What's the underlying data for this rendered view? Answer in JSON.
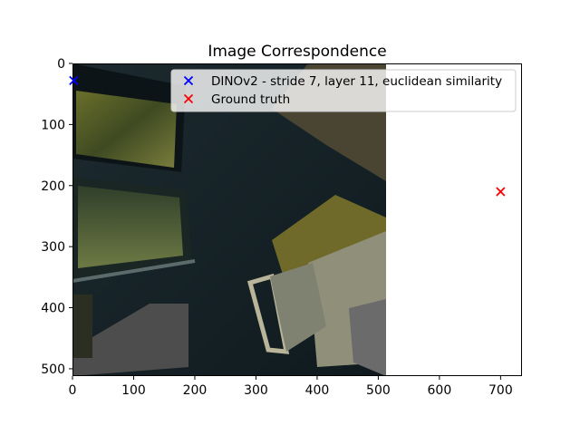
{
  "chart_data": {
    "type": "scatter",
    "title": "Image Correspondence",
    "xlabel": "",
    "ylabel": "",
    "xlim": [
      0,
      735
    ],
    "ylim": [
      512,
      0
    ],
    "y_inverted": true,
    "image_extent": {
      "x": [
        0,
        512
      ],
      "y": [
        0,
        512
      ]
    },
    "xticks": [
      0,
      100,
      200,
      300,
      400,
      500,
      600,
      700
    ],
    "yticks": [
      0,
      100,
      200,
      300,
      400,
      500
    ],
    "grid": false,
    "legend_position": "top-right",
    "series": [
      {
        "name": "DINOv2 - stride 7, layer 11, euclidean similarity",
        "marker": "x",
        "color": "#0000ff",
        "points": [
          {
            "x": 2,
            "y": 28
          }
        ]
      },
      {
        "name": "Ground truth",
        "marker": "x",
        "color": "#ff0000",
        "points": [
          {
            "x": 700,
            "y": 210
          }
        ]
      }
    ]
  }
}
